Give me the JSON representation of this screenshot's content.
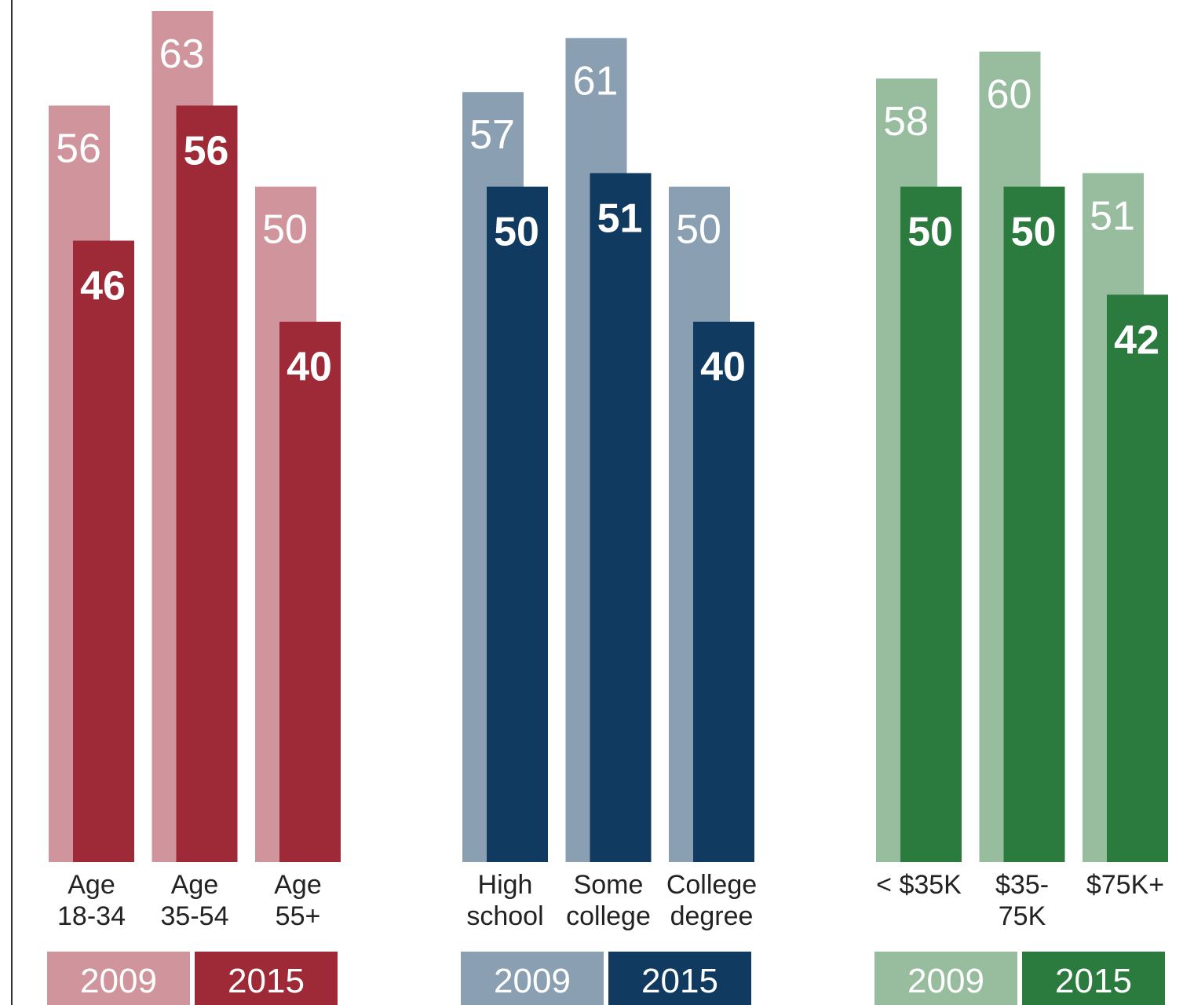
{
  "chart_data": [
    {
      "type": "bar",
      "categories": [
        [
          "Age",
          "18-34"
        ],
        [
          "Age",
          "35-54"
        ],
        [
          "Age",
          "55+"
        ]
      ],
      "series": [
        {
          "name": "2009",
          "values": [
            56,
            63,
            50
          ],
          "color": "#d0959c"
        },
        {
          "name": "2015",
          "values": [
            46,
            56,
            40
          ],
          "color": "#9e2a38"
        }
      ],
      "ylim": [
        0,
        63
      ]
    },
    {
      "type": "bar",
      "categories": [
        [
          "High",
          "school"
        ],
        [
          "Some",
          "college"
        ],
        [
          "College",
          "degree"
        ]
      ],
      "series": [
        {
          "name": "2009",
          "values": [
            57,
            61,
            50
          ],
          "color": "#8a9fb2"
        },
        {
          "name": "2015",
          "values": [
            50,
            51,
            40
          ],
          "color": "#103a60"
        }
      ],
      "ylim": [
        0,
        63
      ]
    },
    {
      "type": "bar",
      "categories": [
        [
          "< $35K"
        ],
        [
          "$35-",
          "75K"
        ],
        [
          "$75K+"
        ]
      ],
      "series": [
        {
          "name": "2009",
          "values": [
            58,
            60,
            51
          ],
          "color": "#98bd9e"
        },
        {
          "name": "2015",
          "values": [
            50,
            50,
            42
          ],
          "color": "#2b7a3e"
        }
      ],
      "ylim": [
        0,
        63
      ]
    }
  ]
}
